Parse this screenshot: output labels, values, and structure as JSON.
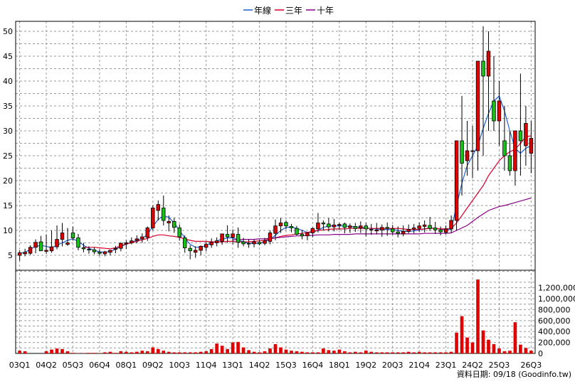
{
  "chart_data": {
    "type": "candlestick+line+bar",
    "legend": [
      {
        "name": "年線",
        "color": "#1f5fd1"
      },
      {
        "name": "三年",
        "color": "#d9002a"
      },
      {
        "name": "十年",
        "color": "#8a008a"
      }
    ],
    "price_axis": {
      "ylim": [
        2,
        52
      ],
      "ticks": [
        5,
        10,
        15,
        20,
        25,
        30,
        35,
        40,
        45,
        50
      ],
      "tick_labels": [
        "5",
        "10",
        "15",
        "20",
        "25",
        "30",
        "35",
        "40",
        "45",
        "50"
      ]
    },
    "volume_axis": {
      "ylim": [
        0,
        1520000
      ],
      "ticks": [
        0,
        200000,
        400000,
        600000,
        800000,
        1000000,
        1200000
      ],
      "tick_labels": [
        "0",
        "200,000",
        "400,000",
        "600,000",
        "800,000",
        "1,000,000",
        "1,200,000"
      ]
    },
    "x_labels": [
      "03Q1",
      "04Q2",
      "05Q3",
      "06Q4",
      "08Q1",
      "09Q2",
      "10Q3",
      "11Q4",
      "13Q1",
      "14Q2",
      "15Q3",
      "16Q4",
      "18Q1",
      "19Q2",
      "20Q3",
      "21Q4",
      "23Q1",
      "24Q2",
      "25Q3",
      "26Q3"
    ],
    "price": {
      "opens": [
        5.0,
        5.3,
        5.4,
        6.6,
        7.7,
        5.8,
        5.9,
        6.7,
        8.2,
        7.2,
        9.5,
        8.5,
        6.5,
        6.2,
        6.1,
        5.6,
        5.3,
        5.6,
        6.2,
        6.4,
        7.3,
        7.5,
        8.0,
        8.3,
        8.6,
        10.5,
        14.0,
        14.5,
        11.5,
        11.8,
        10.5,
        8.5,
        6.4,
        5.6,
        6.0,
        6.6,
        7.1,
        7.5,
        7.8,
        9.2,
        8.6,
        9.2,
        7.7,
        7.4,
        7.3,
        7.6,
        7.4,
        7.8,
        9.4,
        10.9,
        11.6,
        10.8,
        10.4,
        9.2,
        8.9,
        9.5,
        10.3,
        11.5,
        11.3,
        10.7,
        11.0,
        11.3,
        10.6,
        10.8,
        10.5,
        10.9,
        10.2,
        9.9,
        10.1,
        10.6,
        10.3,
        9.7,
        9.3,
        9.8,
        10.2,
        10.4,
        10.8,
        11.0,
        10.5,
        10.1,
        9.6,
        10.3,
        12.0,
        28.0,
        24.0,
        26.0,
        26.0,
        44.0,
        41.0,
        36.0,
        32.0,
        28.0,
        25.0,
        22.0,
        30.0,
        27.0,
        25.5
      ],
      "highs": [
        6.0,
        6.3,
        7.0,
        8.2,
        8.9,
        9.2,
        10.0,
        11.0,
        11.5,
        10.5,
        10.8,
        9.3,
        7.5,
        6.8,
        6.6,
        6.2,
        5.9,
        6.1,
        6.9,
        7.6,
        8.0,
        8.6,
        9.0,
        9.4,
        10.8,
        15.0,
        16.0,
        17.0,
        13.0,
        12.5,
        11.2,
        9.0,
        7.0,
        6.8,
        7.0,
        7.7,
        8.4,
        8.6,
        9.3,
        11.0,
        10.2,
        10.6,
        8.5,
        8.3,
        8.2,
        8.1,
        8.5,
        10.0,
        12.2,
        12.5,
        12.0,
        11.3,
        10.9,
        10.1,
        9.6,
        10.6,
        13.5,
        12.0,
        12.5,
        12.3,
        11.5,
        11.6,
        11.4,
        11.5,
        11.8,
        11.5,
        11.3,
        11.5,
        11.2,
        11.6,
        11.1,
        10.8,
        11.0,
        11.2,
        11.3,
        11.6,
        12.0,
        12.7,
        11.7,
        10.8,
        11.0,
        13.0,
        28.0,
        37.0,
        32.0,
        31.0,
        38.0,
        51.0,
        50.0,
        45.0,
        40.0,
        35.0,
        30.0,
        26.0,
        41.5,
        35.0,
        32.0
      ],
      "lows": [
        3.9,
        4.8,
        5.1,
        5.4,
        6.0,
        5.3,
        5.5,
        6.2,
        6.8,
        6.9,
        8.0,
        6.0,
        5.6,
        5.3,
        5.2,
        4.9,
        4.8,
        5.0,
        5.4,
        5.8,
        6.3,
        7.2,
        7.4,
        7.5,
        7.9,
        10.0,
        12.0,
        11.0,
        9.8,
        9.5,
        8.0,
        5.5,
        4.2,
        4.5,
        5.0,
        5.8,
        6.5,
        6.8,
        7.1,
        7.5,
        7.2,
        6.5,
        6.8,
        6.5,
        6.6,
        7.0,
        7.0,
        7.2,
        8.0,
        9.5,
        10.2,
        9.6,
        9.0,
        8.2,
        8.0,
        8.6,
        9.6,
        10.0,
        9.8,
        9.8,
        10.1,
        9.4,
        9.5,
        9.7,
        9.5,
        8.8,
        9.1,
        9.2,
        8.7,
        8.9,
        9.1,
        8.6,
        8.8,
        9.4,
        9.4,
        9.7,
        9.6,
        9.9,
        9.3,
        9.0,
        9.2,
        9.5,
        10.0,
        17.0,
        21.0,
        20.5,
        22.0,
        25.0,
        30.0,
        30.0,
        27.0,
        22.0,
        21.0,
        19.0,
        21.0,
        23.0,
        21.5
      ],
      "closes": [
        5.5,
        5.6,
        6.6,
        7.6,
        5.9,
        6.0,
        6.7,
        8.2,
        9.5,
        7.5,
        8.5,
        6.6,
        6.3,
        6.1,
        5.7,
        5.4,
        5.7,
        6.0,
        6.4,
        7.4,
        7.5,
        7.9,
        8.3,
        8.7,
        10.5,
        14.5,
        15.2,
        12.0,
        11.8,
        10.6,
        8.7,
        6.5,
        5.9,
        6.0,
        6.8,
        7.2,
        7.6,
        7.9,
        9.3,
        8.7,
        9.3,
        7.6,
        7.3,
        7.3,
        7.7,
        7.3,
        7.9,
        9.5,
        10.9,
        11.5,
        10.9,
        10.5,
        9.2,
        8.9,
        9.5,
        10.4,
        11.5,
        11.3,
        10.7,
        11.1,
        11.2,
        10.6,
        10.9,
        10.4,
        10.9,
        10.3,
        10.1,
        10.1,
        10.6,
        10.4,
        9.7,
        9.4,
        9.8,
        10.2,
        10.5,
        10.9,
        11.1,
        10.4,
        10.1,
        9.7,
        10.3,
        12.0,
        28.0,
        23.5,
        26.0,
        26.0,
        44.0,
        41.0,
        46.0,
        32.0,
        36.0,
        25.0,
        22.0,
        30.0,
        28.0,
        31.5,
        28.5
      ]
    },
    "lines": {
      "年線": [
        5.4,
        5.6,
        6.2,
        6.8,
        7.0,
        6.8,
        6.5,
        7.0,
        7.5,
        8.0,
        8.3,
        7.8,
        7.0,
        6.4,
        6.0,
        5.7,
        5.6,
        5.8,
        6.2,
        6.8,
        7.2,
        7.6,
        8.0,
        8.4,
        9.2,
        10.8,
        12.2,
        13.0,
        12.6,
        11.5,
        10.0,
        8.5,
        7.2,
        6.6,
        6.6,
        7.0,
        7.5,
        7.9,
        8.2,
        8.5,
        8.5,
        8.1,
        7.7,
        7.4,
        7.4,
        7.4,
        7.7,
        8.2,
        9.0,
        10.0,
        10.6,
        10.7,
        10.4,
        10.0,
        9.6,
        9.6,
        10.0,
        10.6,
        10.9,
        10.9,
        10.9,
        10.9,
        10.8,
        10.7,
        10.6,
        10.5,
        10.4,
        10.3,
        10.2,
        10.2,
        10.2,
        10.0,
        9.8,
        9.8,
        9.9,
        10.1,
        10.3,
        10.5,
        10.4,
        10.3,
        10.1,
        10.2,
        15.0,
        19.5,
        23.0,
        25.0,
        27.0,
        30.5,
        33.5,
        36.0,
        37.0,
        34.0,
        30.0,
        26.5,
        25.5,
        26.5,
        27.0
      ],
      "三年": [
        null,
        null,
        null,
        null,
        null,
        null,
        null,
        null,
        null,
        null,
        null,
        null,
        6.6,
        6.6,
        6.6,
        6.5,
        6.4,
        6.3,
        6.5,
        6.9,
        7.3,
        7.5,
        7.8,
        8.1,
        8.4,
        8.8,
        9.1,
        9.1,
        8.9,
        8.8,
        8.6,
        8.3,
        8.0,
        7.8,
        7.8,
        7.8,
        7.7,
        7.7,
        7.7,
        7.8,
        7.8,
        7.7,
        7.7,
        7.7,
        7.8,
        7.9,
        8.0,
        8.3,
        8.5,
        8.8,
        9.0,
        9.1,
        9.3,
        9.4,
        9.6,
        9.8,
        10.0,
        10.1,
        10.2,
        10.3,
        10.3,
        10.3,
        10.4,
        10.4,
        10.4,
        10.4,
        10.4,
        10.4,
        10.4,
        10.4,
        10.4,
        10.4,
        10.3,
        10.2,
        10.2,
        10.2,
        10.3,
        10.4,
        10.4,
        10.3,
        10.3,
        10.4,
        11.5,
        13.0,
        14.5,
        16.0,
        17.5,
        19.0,
        21.0,
        22.5,
        24.0,
        25.0,
        25.8,
        26.3,
        27.5,
        28.8,
        29.0
      ],
      "十年": [
        null,
        null,
        null,
        null,
        null,
        null,
        null,
        null,
        null,
        null,
        null,
        null,
        null,
        null,
        null,
        null,
        null,
        null,
        null,
        null,
        null,
        null,
        null,
        null,
        null,
        null,
        null,
        null,
        null,
        null,
        null,
        null,
        null,
        null,
        null,
        null,
        null,
        null,
        null,
        null,
        8.1,
        8.2,
        8.2,
        8.2,
        8.2,
        8.3,
        8.3,
        8.4,
        8.5,
        8.6,
        8.7,
        8.8,
        8.9,
        8.9,
        9.0,
        9.0,
        9.1,
        9.1,
        9.1,
        9.2,
        9.2,
        9.2,
        9.2,
        9.3,
        9.3,
        9.3,
        9.3,
        9.3,
        9.3,
        9.3,
        9.3,
        9.3,
        9.3,
        9.3,
        9.3,
        9.3,
        9.4,
        9.4,
        9.4,
        9.4,
        9.4,
        9.5,
        10.0,
        10.5,
        11.0,
        11.8,
        12.6,
        13.3,
        14.0,
        14.4,
        14.8,
        15.0,
        15.3,
        15.6,
        15.9,
        16.2,
        16.5
      ]
    },
    "volume": [
      50000,
      40000,
      0,
      0,
      0,
      40000,
      70000,
      90000,
      80000,
      40000,
      10000,
      5000,
      5000,
      10000,
      10000,
      5000,
      20000,
      30000,
      10000,
      40000,
      30000,
      20000,
      30000,
      50000,
      40000,
      110000,
      80000,
      50000,
      30000,
      20000,
      20000,
      20000,
      20000,
      20000,
      30000,
      40000,
      80000,
      180000,
      140000,
      80000,
      200000,
      210000,
      110000,
      60000,
      30000,
      20000,
      40000,
      90000,
      170000,
      110000,
      70000,
      50000,
      40000,
      30000,
      20000,
      20000,
      20000,
      90000,
      60000,
      50000,
      70000,
      40000,
      20000,
      30000,
      20000,
      50000,
      30000,
      20000,
      20000,
      20000,
      20000,
      20000,
      20000,
      30000,
      20000,
      30000,
      20000,
      20000,
      20000,
      20000,
      20000,
      30000,
      380000,
      680000,
      290000,
      200000,
      1350000,
      420000,
      250000,
      170000,
      90000,
      40000,
      50000,
      570000,
      160000,
      100000,
      50000
    ]
  },
  "source_label": "資料日期: 09/18 (Goodinfo.tw)"
}
